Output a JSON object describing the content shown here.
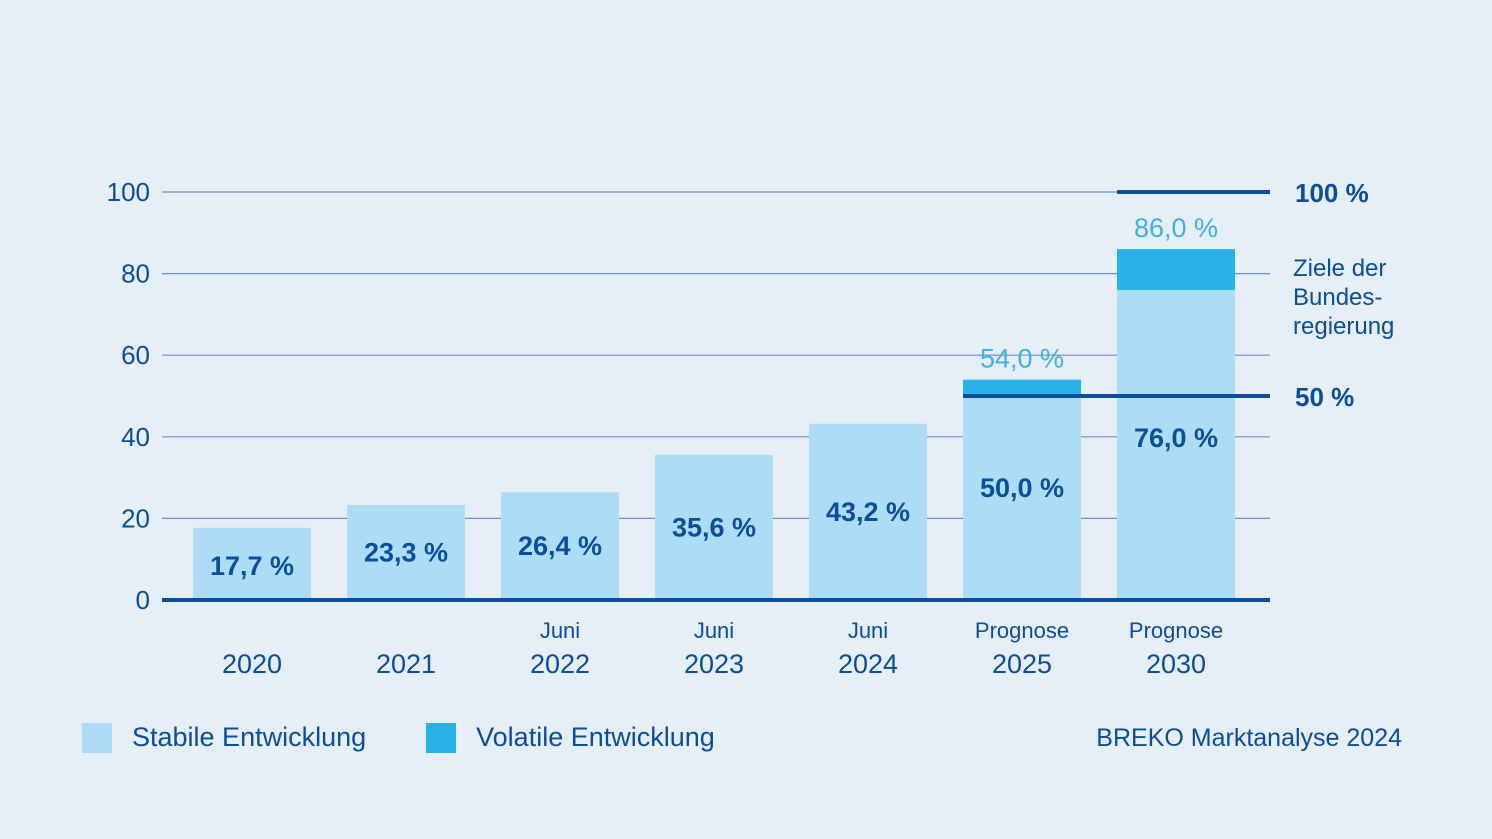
{
  "colors": {
    "background": "#e6eef8",
    "stable": "#addcf7",
    "volatile": "#27b2e8",
    "dark_blue": "#0a4e9c",
    "grid": "#6f8fc8",
    "volatile_label": "#3fb1e6"
  },
  "chart_data": {
    "type": "bar",
    "stacked": true,
    "categories": [
      "2020",
      "2021",
      "2022",
      "2023",
      "2024",
      "2025",
      "2030"
    ],
    "category_sublabels": [
      "",
      "",
      "Juni",
      "Juni",
      "Juni",
      "Prognose",
      "Prognose"
    ],
    "series": [
      {
        "name": "Stabile Entwicklung",
        "values": [
          17.7,
          23.3,
          26.4,
          35.6,
          43.2,
          50.0,
          76.0
        ],
        "labels": [
          "17,7 %",
          "23,3 %",
          "26,4 %",
          "35,6 %",
          "43,2 %",
          "50,0 %",
          "76,0 %"
        ]
      },
      {
        "name": "Volatile Entwicklung",
        "values": [
          0,
          0,
          0,
          0,
          0,
          4.0,
          10.0
        ],
        "labels": [
          "",
          "",
          "",
          "",
          "",
          "54,0 %",
          "86,0 %"
        ]
      }
    ],
    "ylim": [
      0,
      100
    ],
    "yticks": [
      "0",
      "20",
      "40",
      "60",
      "80",
      "100"
    ],
    "grid": true,
    "targets": [
      {
        "value": 100,
        "label": "100 %",
        "from_category": 6
      },
      {
        "value": 50,
        "label": "50 %",
        "from_category": 5
      }
    ],
    "target_note": "Ziele der Bundes- regierung",
    "legend_position": "bottom-left"
  },
  "legend": {
    "stable_label": "Stabile Entwicklung",
    "volatile_label": "Volatile Entwicklung"
  },
  "source": "BREKO Marktanalyse 2024"
}
